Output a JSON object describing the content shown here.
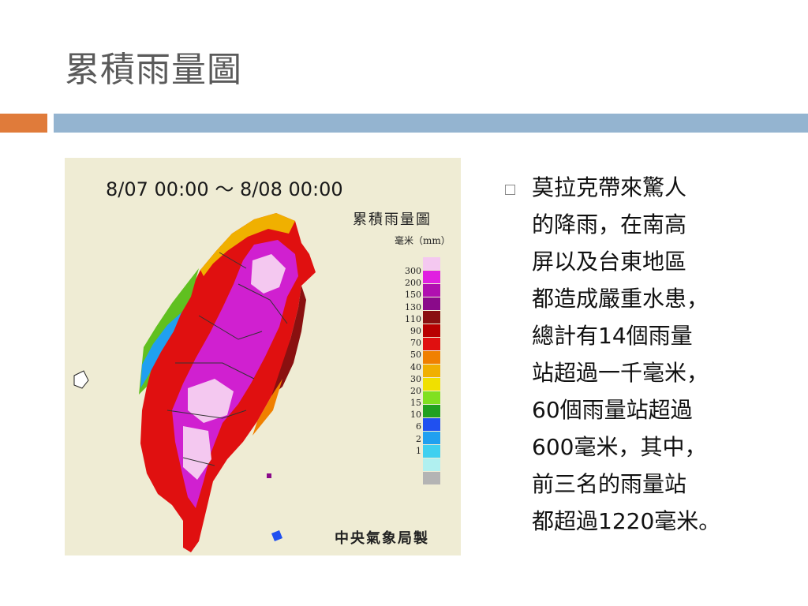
{
  "slide": {
    "title": "累積雨量圖",
    "accent_colors": {
      "orange": "#e07b3a",
      "blue": "#94b4d0"
    }
  },
  "map": {
    "date_range": "8/07 00:00 ～ 8/08 00:00",
    "legend_title": "累積雨量圖",
    "legend_unit": "毫米（mm）",
    "credit": "中央氣象局製",
    "legend": [
      {
        "label": "300",
        "color": "#f4c8f0"
      },
      {
        "label": "200",
        "color": "#e020e0"
      },
      {
        "label": "150",
        "color": "#b010b0"
      },
      {
        "label": "130",
        "color": "#8a0a8a"
      },
      {
        "label": "110",
        "color": "#8a1010"
      },
      {
        "label": "90",
        "color": "#b80000"
      },
      {
        "label": "70",
        "color": "#e01010"
      },
      {
        "label": "50",
        "color": "#f08000"
      },
      {
        "label": "40",
        "color": "#f0b000"
      },
      {
        "label": "30",
        "color": "#f0e000"
      },
      {
        "label": "20",
        "color": "#80e020"
      },
      {
        "label": "15",
        "color": "#20a020"
      },
      {
        "label": "10",
        "color": "#2050f0"
      },
      {
        "label": "6",
        "color": "#20a0f0"
      },
      {
        "label": "2",
        "color": "#40d0f0"
      },
      {
        "label": "1",
        "color": "#b0f0f0"
      },
      {
        "label": "",
        "color": "#b4b4b4"
      }
    ]
  },
  "bullet": {
    "lines": [
      "莫拉克帶來驚人",
      "的降雨，在南高",
      "屏以及台東地區",
      "都造成嚴重水患，",
      "總計有14個雨量",
      "站超過一千毫米，",
      "60個雨量站超過",
      "600毫米，其中，",
      "前三名的雨量站",
      "都超過1220毫米。"
    ]
  }
}
